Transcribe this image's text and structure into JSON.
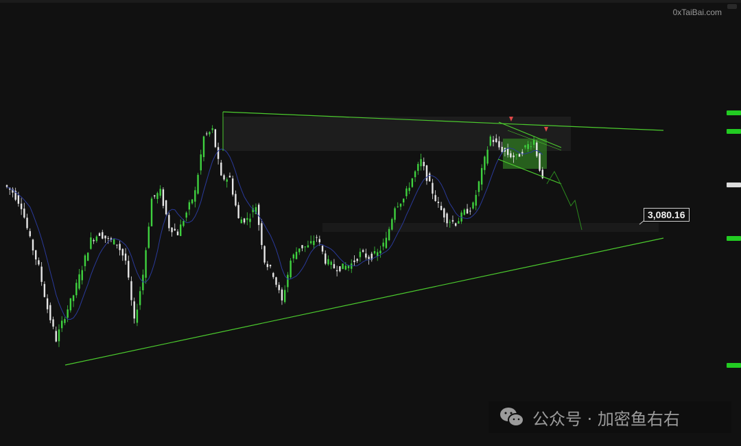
{
  "watermark_site": "0xTaiBai.com",
  "footer": {
    "channel": "公众号 · 加密鱼右右",
    "icon": "wechat-icon"
  },
  "colors": {
    "bull": "#3fd13f",
    "bear": "#e8e8e8",
    "trendline": "#4ccc2e",
    "ma": "#2a3a9a",
    "arrow": "#e04848",
    "background": "#111111"
  },
  "chart_data": {
    "type": "candlestick",
    "title": "",
    "price_label": "3,080.16",
    "grid": false,
    "moving_average": true,
    "annotations": [
      "ascending support trendline",
      "descending resistance trendline",
      "supply zone",
      "consolidation box",
      "descending channel",
      "two sell arrows",
      "projected downward path to 3,080.16"
    ],
    "close": [
      3186,
      3170,
      3138,
      3058,
      2994,
      2898,
      2826,
      2882,
      2930,
      2994,
      3058,
      3074,
      3058,
      3050,
      3010,
      2866,
      2978,
      3154,
      3170,
      3090,
      3074,
      3122,
      3170,
      3298,
      3314,
      3202,
      3202,
      3106,
      3106,
      3138,
      3010,
      2978,
      2914,
      3010,
      3042,
      3042,
      3066,
      3010,
      2994,
      2994,
      3002,
      3026,
      3018,
      3026,
      3058,
      3138,
      3154,
      3202,
      3242,
      3186,
      3138,
      3106,
      3098,
      3122,
      3138,
      3218,
      3298,
      3274,
      3258,
      3250,
      3274,
      3290,
      3194
    ]
  }
}
